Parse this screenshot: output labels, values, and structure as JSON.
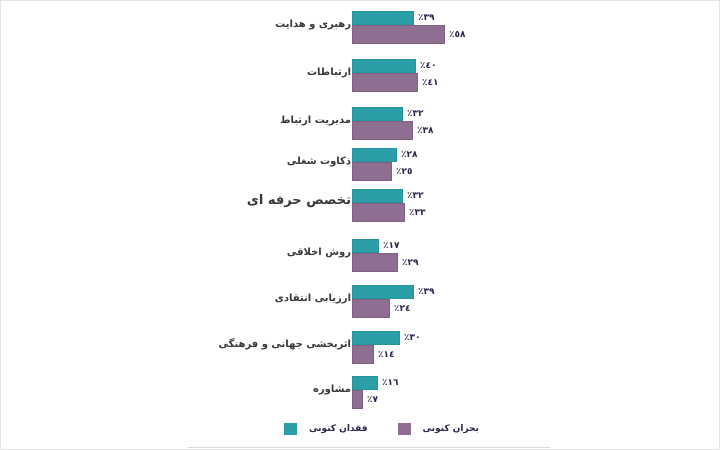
{
  "chart_data": {
    "type": "bar",
    "orientation": "horizontal",
    "direction": "rtl",
    "title": "",
    "xlabel": "",
    "ylabel": "",
    "xlim": [
      0,
      100
    ],
    "grid": false,
    "legend_position": "bottom",
    "value_unit": "percent",
    "categories": [
      "رهبری و هدایت",
      "ارتباطات",
      "مدیریت ارتباط",
      "ذکاوت شغلی",
      "تخصص حرفه ای",
      "روش اخلاقی",
      "ارزیابی انتقادی",
      "اثربخشی جهانی و فرهنگی",
      "مشاوره"
    ],
    "series": [
      {
        "key": "current-lack",
        "name": "فقدان کنونی",
        "color": "#2b9fa8",
        "values": [
          39,
          40,
          32,
          28,
          32,
          17,
          39,
          30,
          16
        ],
        "value_labels": [
          "٪٣٩",
          "٪٤٠",
          "٪٣٢",
          "٪٢٨",
          "٪٣٢",
          "٪١٧",
          "٪٣٩",
          "٪٣٠",
          "٪١٦"
        ]
      },
      {
        "key": "current-crisis",
        "name": "بحران کنونی",
        "color": "#8e6f91",
        "values": [
          58,
          41,
          38,
          25,
          33,
          29,
          24,
          14,
          7
        ],
        "value_labels": [
          "٪٥٨",
          "٪٤١",
          "٪٣٨",
          "٪٢٥",
          "٪٣٣",
          "٪٢٩",
          "٪٢٤",
          "٪١٤",
          "٪٧"
        ]
      }
    ]
  },
  "legend": {
    "items": [
      {
        "label": "فقدان کنونی",
        "color": "#2b9fa8"
      },
      {
        "label": "بحران کنونی",
        "color": "#8e6f91"
      }
    ]
  }
}
